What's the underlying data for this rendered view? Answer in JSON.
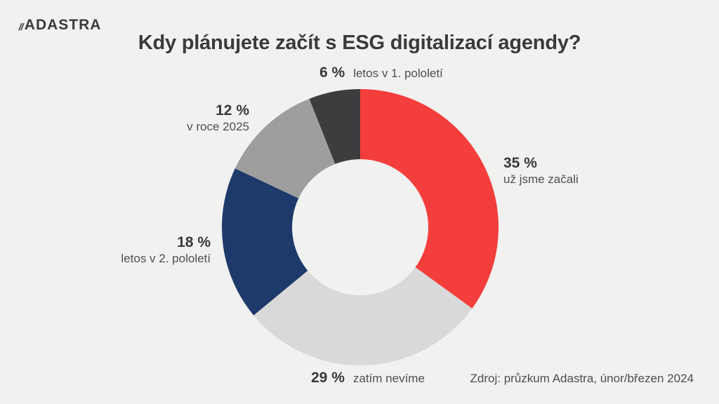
{
  "page": {
    "background": "#F1F1F0"
  },
  "header": {
    "logo": {
      "slashes": "//",
      "text": "ADASTRA",
      "color": "#D9484D"
    },
    "title": "Kdy plánujete začít s ESG digitalizací agendy?"
  },
  "chart_data": {
    "type": "pie",
    "subtype": "donut",
    "title": "Kdy plánujete začít s ESG digitalizací agendy?",
    "start_angle_deg": 0,
    "clockwise": true,
    "inner_radius_ratio": 0.49,
    "legend_position": "around-slices",
    "slices": [
      {
        "label": "už jsme začali",
        "value": 35,
        "pct_label": "35 %",
        "color": "#F43E3C"
      },
      {
        "label": "zatím nevíme",
        "value": 29,
        "pct_label": "29 %",
        "color": "#D9D9D9"
      },
      {
        "label": "letos v 2. pololetí",
        "value": 18,
        "pct_label": "18 %",
        "color": "#1E3A6B"
      },
      {
        "label": "v roce 2025",
        "value": 12,
        "pct_label": "12 %",
        "color": "#9E9E9E"
      },
      {
        "label": "letos v 1. pololetí",
        "value": 6,
        "pct_label": "6 %",
        "color": "#3E3C3F"
      }
    ]
  },
  "footer": {
    "source": "Zdroj: průzkum Adastra, únor/březen 2024"
  }
}
